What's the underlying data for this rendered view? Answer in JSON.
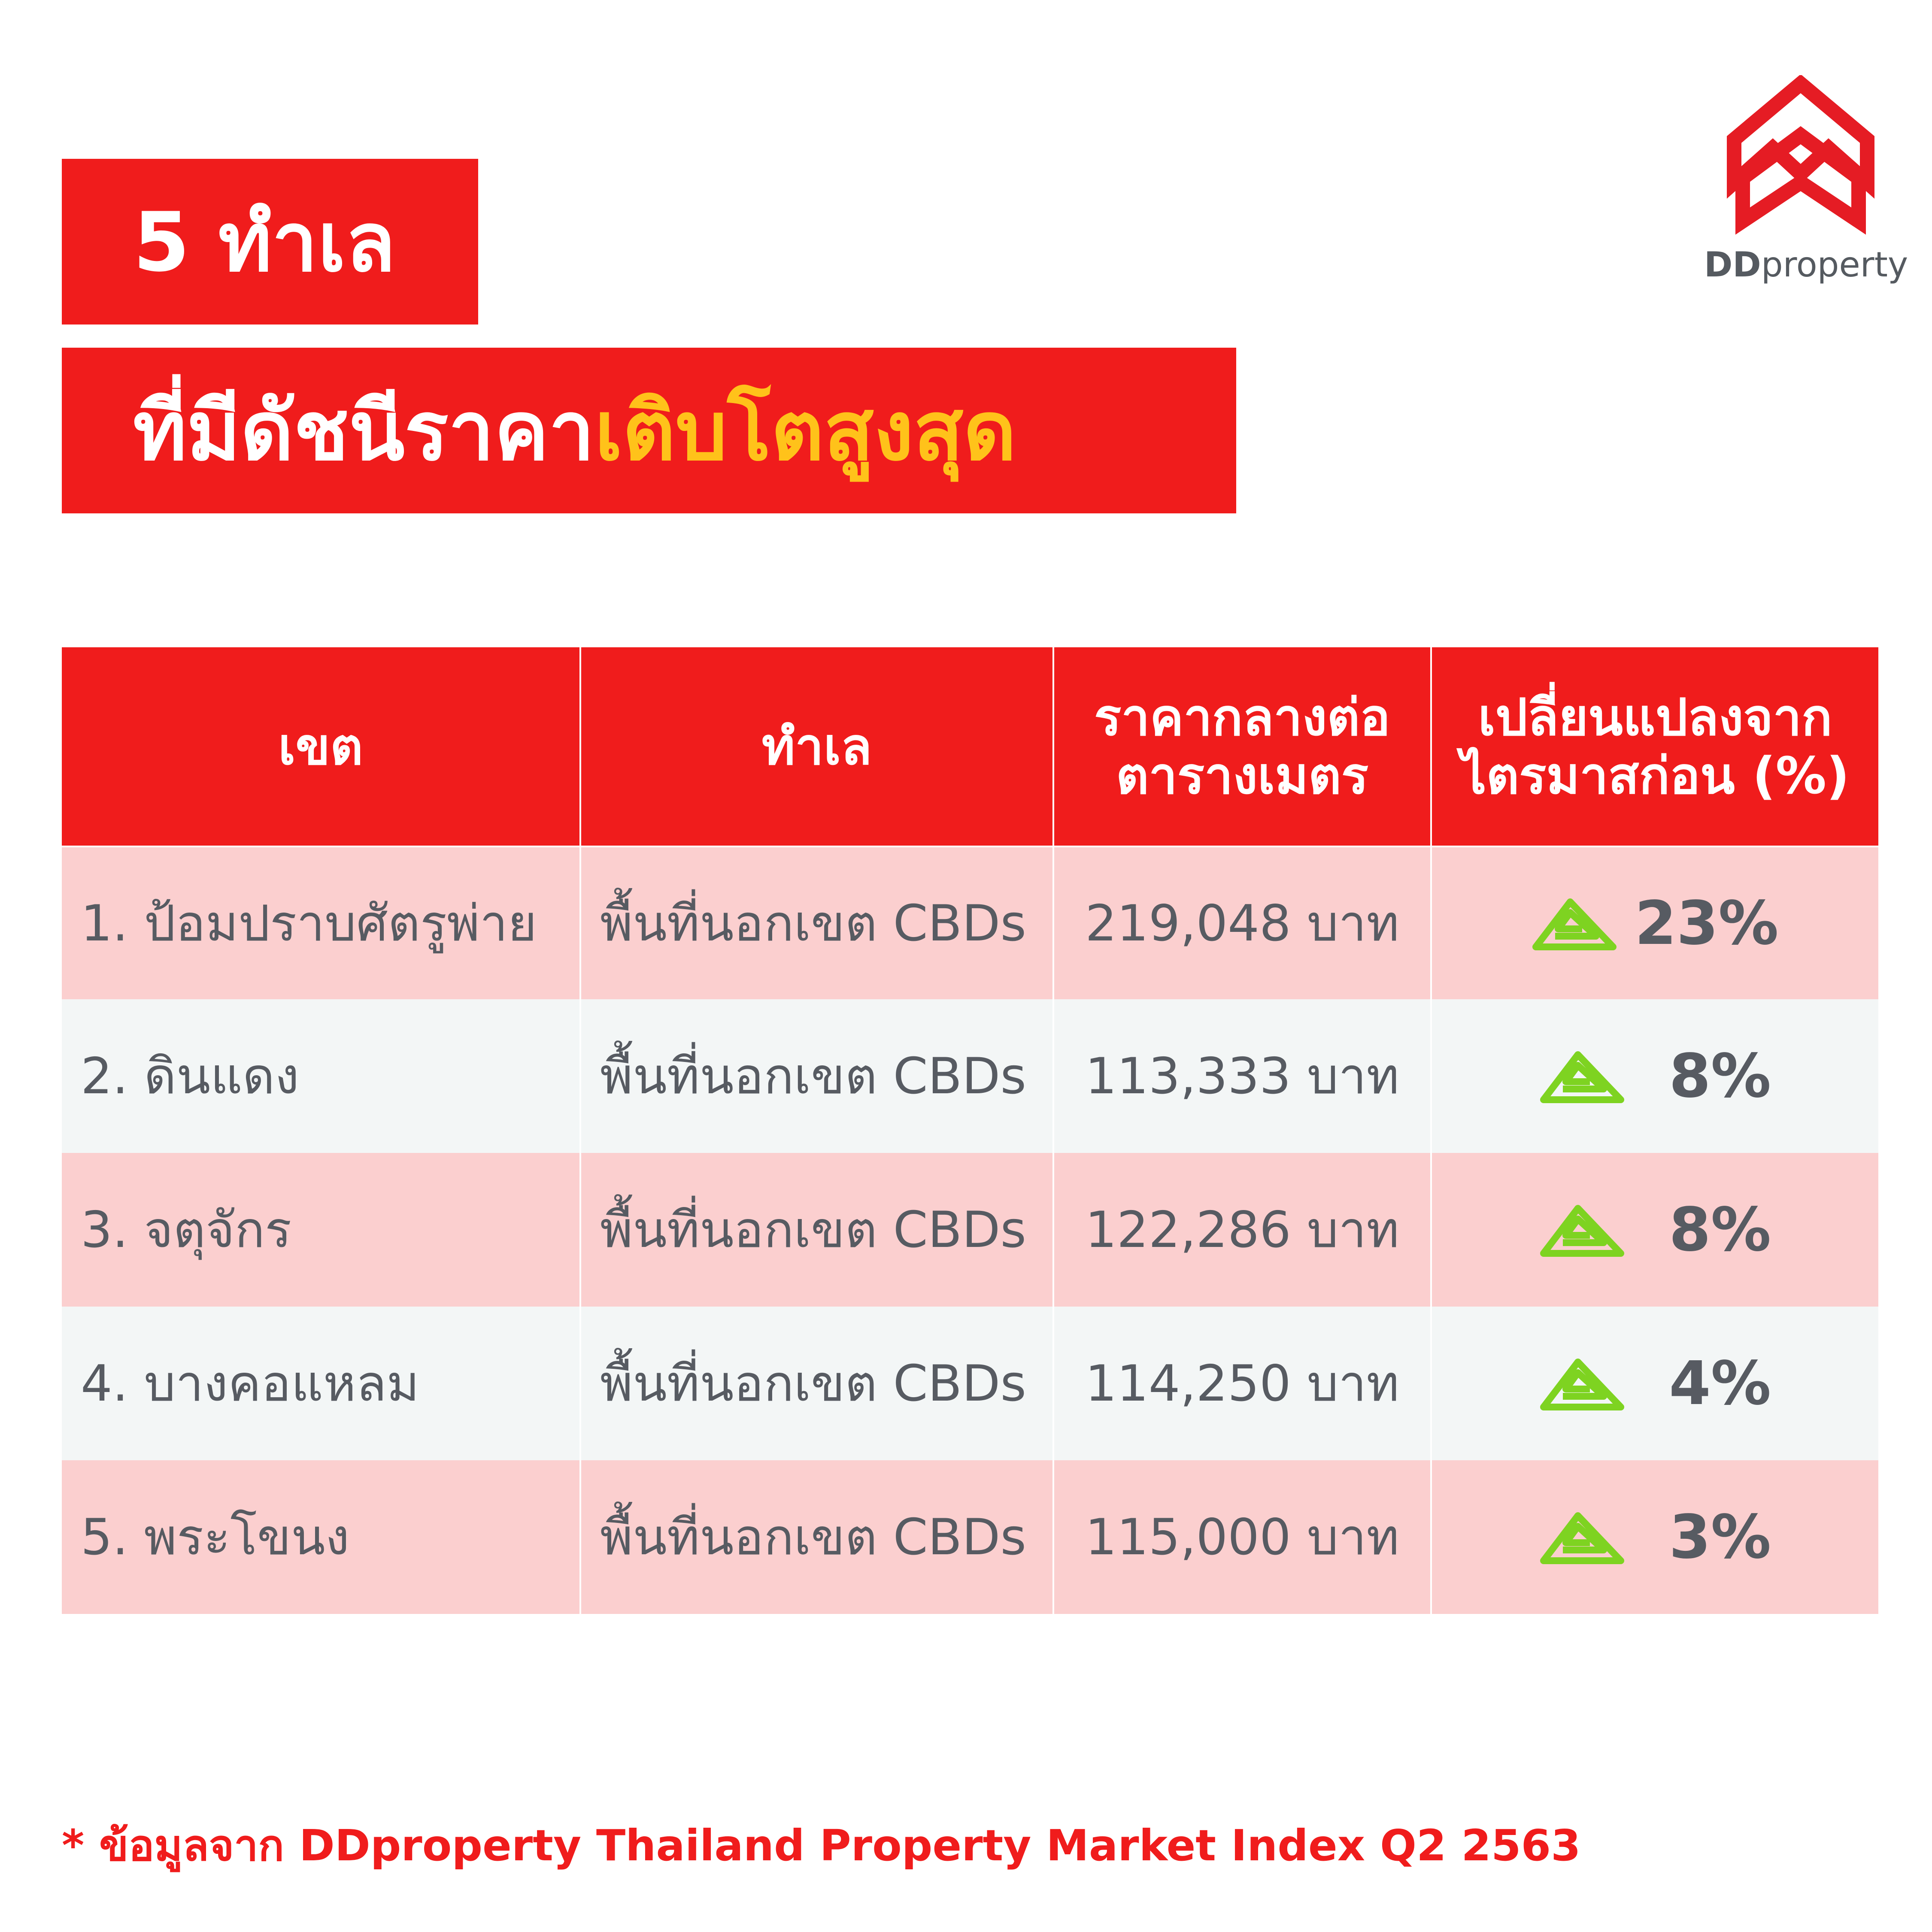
{
  "title": {
    "line1": "5 ทำเล",
    "line2_main": "ที่มีดัชนีราคา",
    "line2_highlight": "เติบโตสูงสุด"
  },
  "logo": {
    "text_bold": "DD",
    "text_rest": "property",
    "icon": "ddproperty-house-logo-icon"
  },
  "colors": {
    "brand_red": "#f01c1c",
    "highlight_yellow": "#ffc21a",
    "row_pink": "#fbcfcf",
    "row_light": "#f3f6f6",
    "up_green": "#7ed321",
    "text_gray": "#575b62"
  },
  "table": {
    "headers": {
      "district": "เขต",
      "zone": "ทำเล",
      "price_line1": "ราคากลางต่อ",
      "price_line2": "ตารางเมตร",
      "change_line1": "เปลี่ยนแปลงจาก",
      "change_line2": "ไตรมาสก่อน (%)"
    },
    "rows": [
      {
        "district": "1. ป้อมปราบศัตรูพ่าย",
        "zone": "พื้นที่นอกเขต CBDs",
        "price": "219,048 บาท",
        "change": "23%",
        "icon": "up-arrow-icon"
      },
      {
        "district": "2. ดินแดง",
        "zone": "พื้นที่นอกเขต CBDs",
        "price": "113,333 บาท",
        "change": "8%",
        "icon": "up-arrow-icon"
      },
      {
        "district": "3. จตุจักร",
        "zone": "พื้นที่นอกเขต CBDs",
        "price": "122,286 บาท",
        "change": "8%",
        "icon": "up-arrow-icon"
      },
      {
        "district": "4. บางคอแหลม",
        "zone": "พื้นที่นอกเขต CBDs",
        "price": "114,250 บาท",
        "change": "4%",
        "icon": "up-arrow-icon"
      },
      {
        "district": "5. พระโขนง",
        "zone": "พื้นที่นอกเขต CBDs",
        "price": "115,000 บาท",
        "change": "3%",
        "icon": "up-arrow-icon"
      }
    ]
  },
  "footer": {
    "note": "* ข้อมูลจาก DDproperty Thailand Property Market Index Q2 2563"
  }
}
